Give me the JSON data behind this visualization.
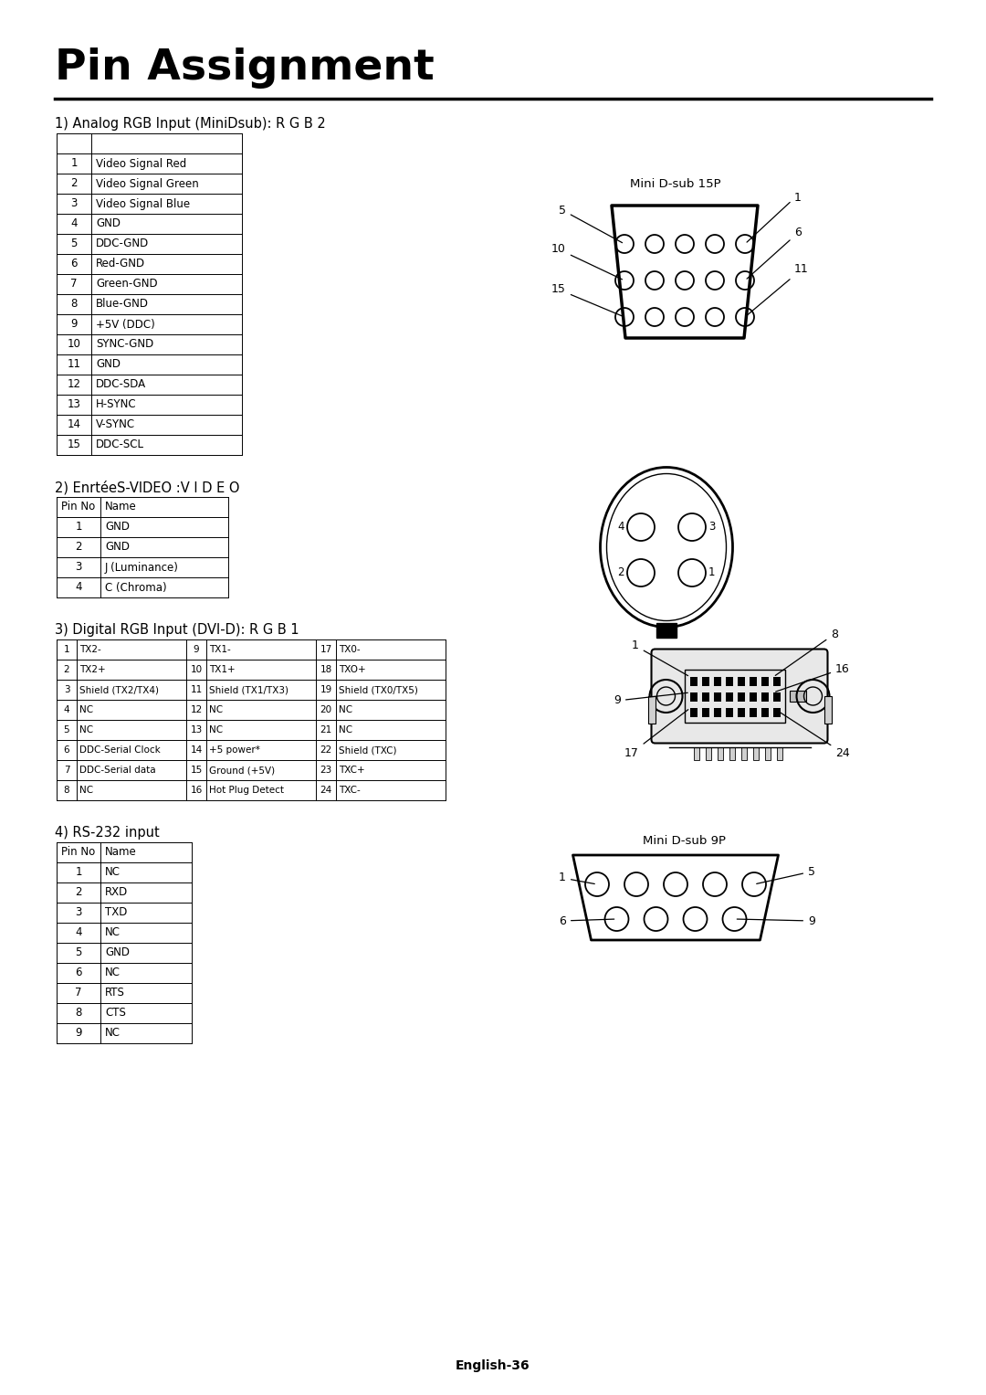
{
  "title": "Pin Assignment",
  "bg_color": "#ffffff",
  "section1_header": "1) Analog RGB Input (MiniDsub): R G B 2",
  "section1_col1": [
    "",
    "1",
    "2",
    "3",
    "4",
    "5",
    "6",
    "7",
    "8",
    "9",
    "10",
    "11",
    "12",
    "13",
    "14",
    "15"
  ],
  "section1_col2": [
    "",
    "Video Signal Red",
    "Video Signal Green",
    "Video Signal Blue",
    "GND",
    "DDC-GND",
    "Red-GND",
    "Green-GND",
    "Blue-GND",
    "+5V (DDC)",
    "SYNC-GND",
    "GND",
    "DDC-SDA",
    "H-SYNC",
    "V-SYNC",
    "DDC-SCL"
  ],
  "section2_header": "2) EnrtéeS-VIDEO :V I D E O",
  "section2_col1": [
    "Pin No",
    "1",
    "2",
    "3",
    "4"
  ],
  "section2_col2": [
    "Name",
    "GND",
    "GND",
    "J (Luminance)",
    "C (Chroma)"
  ],
  "section3_header": "3) Digital RGB Input (DVI-D): R G B 1",
  "section3_data": [
    [
      "1",
      "TX2-",
      "9",
      "TX1-",
      "17",
      "TX0-"
    ],
    [
      "2",
      "TX2+",
      "10",
      "TX1+",
      "18",
      "TXO+"
    ],
    [
      "3",
      "Shield (TX2/TX4)",
      "11",
      "Shield (TX1/TX3)",
      "19",
      "Shield (TX0/TX5)"
    ],
    [
      "4",
      "NC",
      "12",
      "NC",
      "20",
      "NC"
    ],
    [
      "5",
      "NC",
      "13",
      "NC",
      "21",
      "NC"
    ],
    [
      "6",
      "DDC-Serial Clock",
      "14",
      "+5 power*",
      "22",
      "Shield (TXC)"
    ],
    [
      "7",
      "DDC-Serial data",
      "15",
      "Ground (+5V)",
      "23",
      "TXC+"
    ],
    [
      "8",
      "NC",
      "16",
      "Hot Plug Detect",
      "24",
      "TXC-"
    ]
  ],
  "section4_header": "4) RS-232 input",
  "section4_col1": [
    "Pin No",
    "1",
    "2",
    "3",
    "4",
    "5",
    "6",
    "7",
    "8",
    "9"
  ],
  "section4_col2": [
    "Name",
    "NC",
    "RXD",
    "TXD",
    "NC",
    "GND",
    "NC",
    "RTS",
    "CTS",
    "NC"
  ],
  "footer": "English-36"
}
